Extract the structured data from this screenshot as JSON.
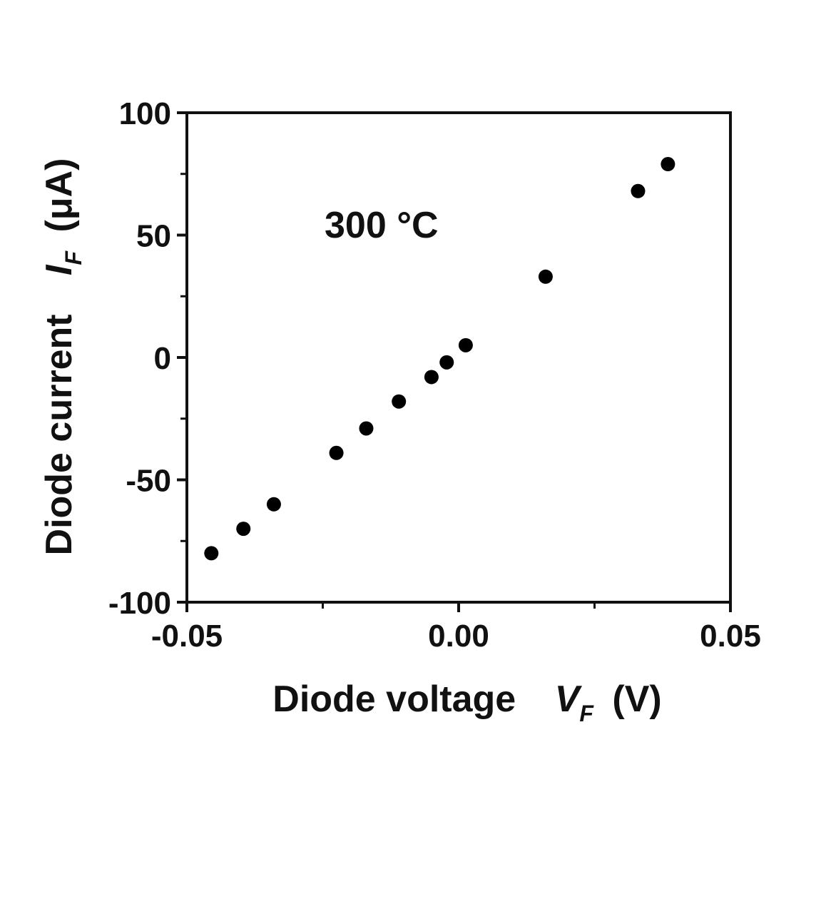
{
  "chart_data": {
    "type": "scatter",
    "annotation": "300 °C",
    "xlabel": {
      "text": "Diode voltage",
      "symbol": "V",
      "subscript": "F",
      "unit": "(V)"
    },
    "ylabel": {
      "text": "Diode current",
      "symbol": "I",
      "subscript": "F",
      "unit": "(μA)"
    },
    "xlim": [
      -0.05,
      0.05
    ],
    "ylim": [
      -100,
      100
    ],
    "xticks": [
      -0.05,
      0.0,
      0.05
    ],
    "xtick_labels": [
      "-0.05",
      "0.00",
      "0.05"
    ],
    "yticks": [
      100,
      50,
      0,
      -50,
      -100
    ],
    "ytick_labels": [
      "100",
      "50",
      "0",
      "-50",
      "-100"
    ],
    "x_minor_ticks": [
      -0.025,
      0.025
    ],
    "y_minor_ticks": [
      75,
      25,
      -25,
      -75
    ],
    "grid": false,
    "marker_color": "#000000",
    "series": [
      {
        "x": [
          -0.0455,
          -0.0396,
          -0.034,
          -0.0225,
          -0.017,
          -0.011,
          -0.005,
          -0.0022,
          0.0013,
          0.016,
          0.033,
          0.0385
        ],
        "y": [
          -80,
          -70,
          -60,
          -39,
          -29,
          -18,
          -8,
          -2,
          5,
          33,
          68,
          79
        ]
      }
    ]
  }
}
